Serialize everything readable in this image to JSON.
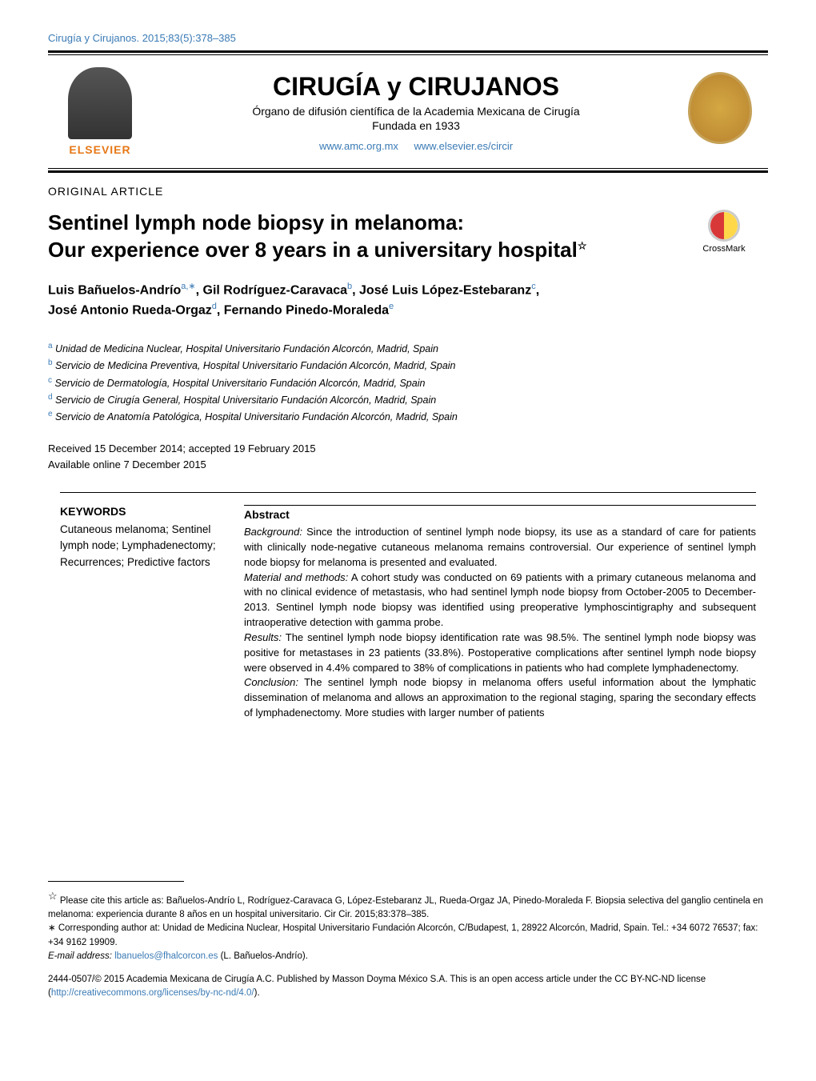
{
  "header": {
    "citation": "Cirugía y Cirujanos. 2015;83(5):378–385",
    "journal_title": "CIRUGÍA y CIRUJANOS",
    "subtitle": "Órgano de difusión científica de la Academia Mexicana de Cirugía",
    "founded": "Fundada en 1933",
    "link1": "www.amc.org.mx",
    "link2": "www.elsevier.es/circir",
    "publisher": "ELSEVIER"
  },
  "article": {
    "type": "ORIGINAL ARTICLE",
    "title_line1": "Sentinel lymph node biopsy in melanoma:",
    "title_line2": "Our experience over 8 years in a universitary hospital",
    "star": "☆",
    "crossmark_label": "CrossMark"
  },
  "authors": {
    "a1": "Luis Bañuelos-Andrío",
    "a1_sup": "a,∗",
    "a2": "Gil Rodríguez-Caravaca",
    "a2_sup": "b",
    "a3": "José Luis López-Estebaranz",
    "a3_sup": "c",
    "a4": "José Antonio Rueda-Orgaz",
    "a4_sup": "d",
    "a5": "Fernando Pinedo-Moraleda",
    "a5_sup": "e"
  },
  "affiliations": {
    "a": "Unidad de Medicina Nuclear, Hospital Universitario Fundación Alcorcón, Madrid, Spain",
    "b": "Servicio de Medicina Preventiva, Hospital Universitario Fundación Alcorcón, Madrid, Spain",
    "c": "Servicio de Dermatología, Hospital Universitario Fundación Alcorcón, Madrid, Spain",
    "d": "Servicio de Cirugía General, Hospital Universitario Fundación Alcorcón, Madrid, Spain",
    "e": "Servicio de Anatomía Patológica, Hospital Universitario Fundación Alcorcón, Madrid, Spain"
  },
  "dates": {
    "received": "Received 15 December 2014; accepted 19 February 2015",
    "available": "Available online 7 December 2015"
  },
  "keywords": {
    "heading": "KEYWORDS",
    "list": "Cutaneous melanoma; Sentinel lymph node; Lymphadenectomy; Recurrences; Predictive factors"
  },
  "abstract": {
    "heading": "Abstract",
    "background_label": "Background:",
    "background": " Since the introduction of sentinel lymph node biopsy, its use as a standard of care for patients with clinically node-negative cutaneous melanoma remains controversial. Our experience of sentinel lymph node biopsy for melanoma is presented and evaluated.",
    "methods_label": "Material and methods:",
    "methods": " A cohort study was conducted on 69 patients with a primary cutaneous melanoma and with no clinical evidence of metastasis, who had sentinel lymph node biopsy from October-2005 to December-2013. Sentinel lymph node biopsy was identified using preoperative lymphoscintigraphy and subsequent intraoperative detection with gamma probe.",
    "results_label": "Results:",
    "results": " The sentinel lymph node biopsy identification rate was 98.5%. The sentinel lymph node biopsy was positive for metastases in 23 patients (33.8%). Postoperative complications after sentinel lymph node biopsy were observed in 4.4% compared to 38% of complications in patients who had complete lymphadenectomy.",
    "conclusion_label": "Conclusion:",
    "conclusion": " The sentinel lymph node biopsy in melanoma offers useful information about the lymphatic dissemination of melanoma and allows an approximation to the regional staging, sparing the secondary effects of lymphadenectomy. More studies with larger number of patients"
  },
  "footnotes": {
    "cite_star": "☆",
    "cite": " Please cite this article as: Bañuelos-Andrío L, Rodríguez-Caravaca G, López-Estebaranz JL, Rueda-Orgaz JA, Pinedo-Moraleda F. Biopsia selectiva del ganglio centinela en melanoma: experiencia durante 8 años en un hospital universitario. Cir Cir. 2015;83:378–385.",
    "corr_star": "∗",
    "corr": " Corresponding author at: Unidad de Medicina Nuclear, Hospital Universitario Fundación Alcorcón, C/Budapest, 1, 28922 Alcorcón, Madrid, Spain. Tel.: +34 6072 76537; fax: +34 9162 19909.",
    "email_label": "E-mail address: ",
    "email": "lbanuelos@fhalcorcon.es",
    "email_suffix": " (L. Bañuelos-Andrío)."
  },
  "copyright": {
    "text1": "2444-0507/© 2015 Academia Mexicana de Cirugía A.C. Published by Masson Doyma México S.A. This is an open access article under the CC BY-NC-ND license (",
    "link": "http://creativecommons.org/licenses/by-nc-nd/4.0/",
    "text2": ")."
  }
}
